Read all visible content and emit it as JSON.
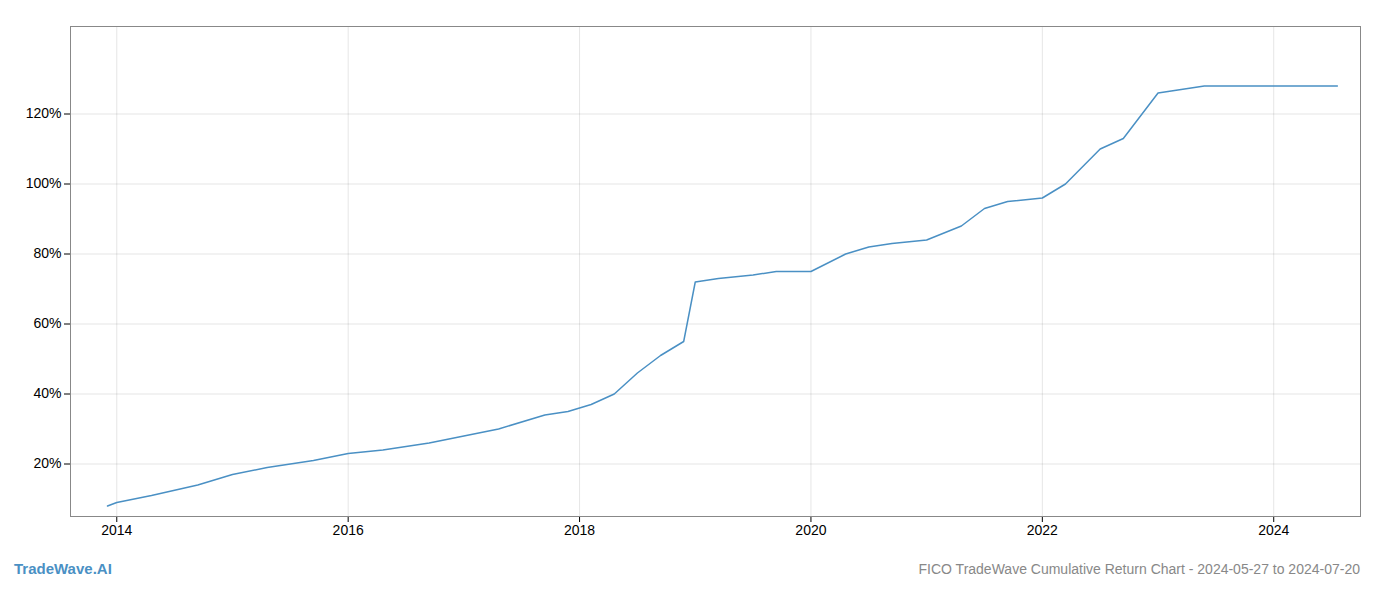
{
  "chart_data": {
    "type": "line",
    "title": "FICO TradeWave Cumulative Return Chart - 2024-05-27 to 2024-07-20",
    "annotations": [
      "TradeWave.AI"
    ],
    "color": "#4a90c4",
    "x": [
      2013.92,
      2014.0,
      2014.3,
      2014.7,
      2015.0,
      2015.3,
      2015.7,
      2016.0,
      2016.3,
      2016.7,
      2017.0,
      2017.3,
      2017.7,
      2017.9,
      2018.1,
      2018.3,
      2018.5,
      2018.7,
      2018.9,
      2019.0,
      2019.2,
      2019.5,
      2019.7,
      2020.0,
      2020.3,
      2020.5,
      2020.7,
      2021.0,
      2021.3,
      2021.5,
      2021.7,
      2022.0,
      2022.2,
      2022.5,
      2022.7,
      2023.0,
      2023.2,
      2023.4,
      2023.5,
      2023.7,
      2024.0,
      2024.3,
      2024.55
    ],
    "values": [
      8,
      9,
      11,
      14,
      17,
      19,
      21,
      23,
      24,
      26,
      28,
      30,
      34,
      35,
      37,
      40,
      46,
      51,
      55,
      72,
      73,
      74,
      75,
      75,
      80,
      82,
      83,
      84,
      88,
      93,
      95,
      96,
      100,
      110,
      113,
      126,
      127,
      128,
      128,
      128,
      128,
      128,
      128
    ],
    "xlim": [
      2013.6,
      2024.75
    ],
    "ylim": [
      5,
      145
    ],
    "xticks": [
      2014,
      2016,
      2018,
      2020,
      2022,
      2024
    ],
    "yticks": [
      {
        "value": 20,
        "label": "20%"
      },
      {
        "value": 40,
        "label": "40%"
      },
      {
        "value": 60,
        "label": "60%"
      },
      {
        "value": 80,
        "label": "80%"
      },
      {
        "value": 100,
        "label": "100%"
      },
      {
        "value": 120,
        "label": "120%"
      }
    ],
    "grid": true
  }
}
